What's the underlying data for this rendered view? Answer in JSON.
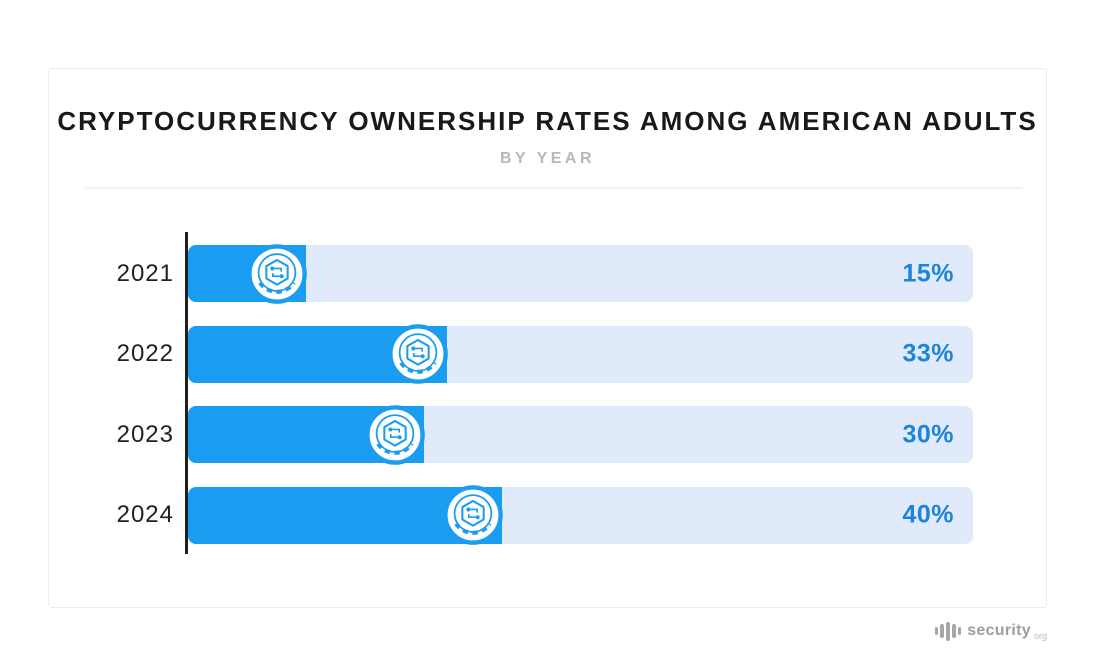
{
  "chart_data": {
    "type": "bar",
    "orientation": "horizontal",
    "title": "CRYPTOCURRENCY OWNERSHIP RATES AMONG AMERICAN ADULTS",
    "subtitle": "BY YEAR",
    "categories": [
      "2021",
      "2022",
      "2023",
      "2024"
    ],
    "values": [
      15,
      33,
      30,
      40
    ],
    "value_labels": [
      "15%",
      "33%",
      "30%",
      "40%"
    ],
    "xlim": [
      0,
      100
    ],
    "grid": false,
    "legend": "none",
    "bar_color": "#1a9cf0",
    "track_color": "#e0eafb",
    "value_color": "#1b84d9",
    "axis_color": "#1f1f1f",
    "marker_icon": "crypto-coin-icon"
  },
  "branding": {
    "icon": "equalizer-bars-icon",
    "name": "security",
    "tld": "org"
  }
}
